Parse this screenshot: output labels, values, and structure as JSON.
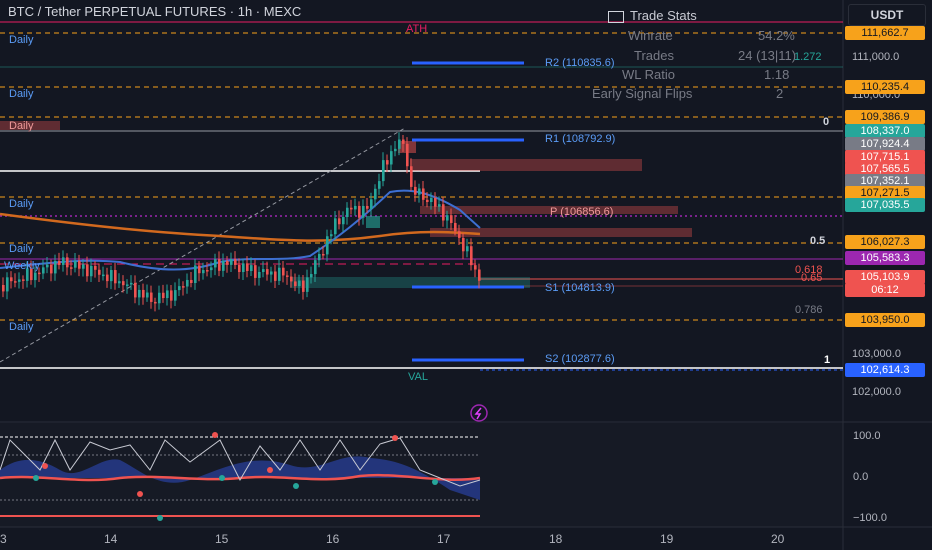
{
  "header": {
    "symbol_title": "BTC / Tether PERPETUAL FUTURES · 1h · MEXC",
    "currency": "USDT"
  },
  "colors": {
    "background": "#131722",
    "up": "#26a69a",
    "down": "#ef5350",
    "blue_level": "#2962ff",
    "orange_dashed": "#f7a21b",
    "purple": "#9c27b0",
    "ma_orange": "#d2691e",
    "ma_blue": "#3d6fd1"
  },
  "trade_stats": {
    "title": "Trade Stats",
    "rows": [
      {
        "label": "Winrate",
        "value": "54.2%",
        "extra": ""
      },
      {
        "label": "Trades",
        "value": "24 (13|11)",
        "extra": "1.272"
      },
      {
        "label": "WL Ratio",
        "value": "1.18",
        "extra": ""
      },
      {
        "label": "Early Signal Flips",
        "value": "2",
        "extra": ""
      }
    ]
  },
  "chart_labels": {
    "ath": "ATH",
    "val": "VAL",
    "daily": "Daily",
    "weekly": "Weekly",
    "r2": "R2 (110835.6)",
    "r1": "R1 (108792.9)",
    "p": "P (106856.6)",
    "s1": "S1 (104813.9)",
    "s2": "S2 (102877.6)",
    "fib_0": "0",
    "fib_05": "0.5",
    "fib_0618": "0.618",
    "fib_065": "0.65",
    "fib_0786": "0.786",
    "fib_1": "1"
  },
  "price_axis": {
    "ticks": [
      "111,000.0",
      "110,000.0",
      "103,000.0",
      "102,000.0"
    ],
    "tags": [
      {
        "value": "111,662.7",
        "color": "#f7a21b",
        "text_color": "#131722"
      },
      {
        "value": "110,235.4",
        "color": "#f7a21b",
        "text_color": "#131722"
      },
      {
        "value": "109,386.9",
        "color": "#f7a21b",
        "text_color": "#131722"
      },
      {
        "value": "108,337.0",
        "color": "#26a69a",
        "text_color": "#ffffff"
      },
      {
        "value": "107,924.4",
        "color": "#787b86",
        "text_color": "#ffffff"
      },
      {
        "value": "107,715.1",
        "color": "#ef5350",
        "text_color": "#ffffff"
      },
      {
        "value": "107,565.5",
        "color": "#ef5350",
        "text_color": "#ffffff"
      },
      {
        "value": "107,352.1",
        "color": "#787b86",
        "text_color": "#ffffff"
      },
      {
        "value": "107,271.5",
        "color": "#f7a21b",
        "text_color": "#131722"
      },
      {
        "value": "107,035.5",
        "color": "#26a69a",
        "text_color": "#ffffff"
      },
      {
        "value": "106,027.3",
        "color": "#f7a21b",
        "text_color": "#131722"
      },
      {
        "value": "105,583.3",
        "color": "#9c27b0",
        "text_color": "#ffffff"
      },
      {
        "value": "105,103.9",
        "color": "#ef5350",
        "text_color": "#ffffff"
      },
      {
        "value": "06:12",
        "color": "#ef5350",
        "text_color": "#ffffff"
      },
      {
        "value": "103,950.0",
        "color": "#f7a21b",
        "text_color": "#131722"
      },
      {
        "value": "102,614.3",
        "color": "#2962ff",
        "text_color": "#ffffff"
      }
    ]
  },
  "oscillator_axis": [
    "100.0",
    "0.0",
    "−100.0"
  ],
  "time_axis": [
    "3",
    "14",
    "15",
    "16",
    "17",
    "18",
    "19",
    "20"
  ]
}
